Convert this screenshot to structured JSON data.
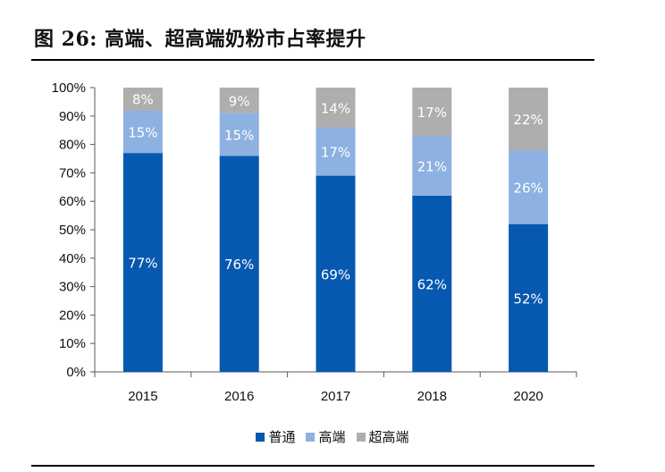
{
  "figure": {
    "title": "图 26: 高端、超高端奶粉市占率提升"
  },
  "colors": {
    "普通": "#0758B0",
    "高端": "#8DB1E0",
    "超高端": "#AEAEAE",
    "label": "#ffffff",
    "axis": "#595959"
  },
  "chart_data": {
    "type": "bar",
    "stacked": true,
    "categories": [
      "2015",
      "2016",
      "2017",
      "2018",
      "2020"
    ],
    "series": [
      {
        "name": "普通",
        "values": [
          77,
          76,
          69,
          62,
          52
        ],
        "labels": [
          "77%",
          "76%",
          "69%",
          "62%",
          "52%"
        ]
      },
      {
        "name": "高端",
        "values": [
          15,
          15,
          17,
          21,
          26
        ],
        "labels": [
          "15%",
          "15%",
          "17%",
          "21%",
          "26%"
        ]
      },
      {
        "name": "超高端",
        "values": [
          8,
          9,
          14,
          17,
          22
        ],
        "labels": [
          "8%",
          "9%",
          "14%",
          "17%",
          "22%"
        ]
      }
    ],
    "ylim": [
      0,
      100
    ],
    "yticks": [
      "0%",
      "10%",
      "20%",
      "30%",
      "40%",
      "50%",
      "60%",
      "70%",
      "80%",
      "90%",
      "100%"
    ],
    "grid": false,
    "legend": "bottom"
  }
}
